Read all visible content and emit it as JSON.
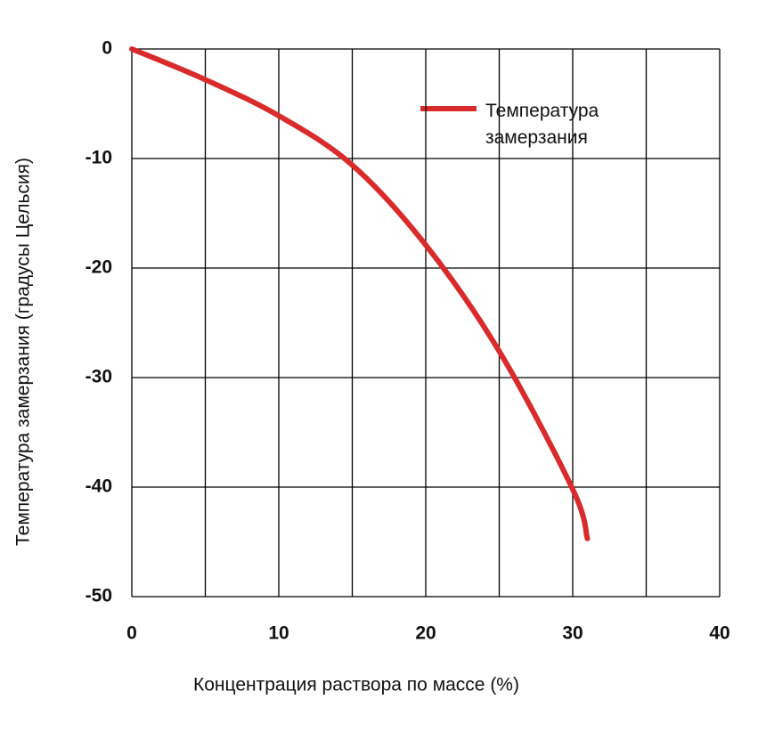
{
  "chart_data": {
    "type": "line",
    "x_label": "Концентрация раствора по массе (%)",
    "y_label": "Температура замерзания (градусы Цельсия)",
    "x": [
      0,
      5,
      10,
      15,
      20,
      25,
      30,
      31
    ],
    "series": [
      {
        "name": "Температура замерзания",
        "color": "#d92b2b",
        "values": [
          0,
          -2.8,
          -6.1,
          -10.6,
          -17.9,
          -27.6,
          -40.2,
          -44.7
        ]
      }
    ],
    "xlim": [
      0,
      40
    ],
    "xticks": [
      0,
      10,
      20,
      30,
      40
    ],
    "xgrid_minor": [
      5,
      15,
      25,
      35
    ],
    "ylim": [
      -50,
      0
    ],
    "yticks": [
      0,
      -10,
      -20,
      -30,
      -40,
      -50
    ],
    "grid": true,
    "legend": "upper right"
  }
}
